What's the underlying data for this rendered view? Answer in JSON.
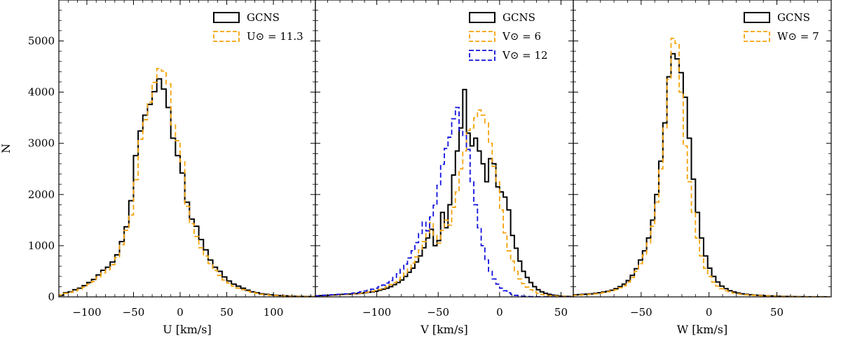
{
  "figure": {
    "ylabel": "N",
    "colors": {
      "gcns": "#000000",
      "orange": "#f5a30a",
      "blue": "#1010dd"
    }
  },
  "chart_data": [
    {
      "type": "histogram",
      "xlabel": "U [km/s]",
      "xlim": [
        -130,
        145
      ],
      "ylim": [
        0,
        5800
      ],
      "xticks": [
        -100,
        -50,
        0,
        50,
        100
      ],
      "xtick_labels": [
        "−100",
        "−50",
        "0",
        "50",
        "100"
      ],
      "yticks": [
        0,
        1000,
        2000,
        3000,
        4000,
        5000
      ],
      "ytick_labels": [
        "0",
        "1000",
        "2000",
        "3000",
        "4000",
        "5000"
      ],
      "bin_start": -130,
      "bin_width": 5,
      "legend": {
        "placement": "top-right"
      },
      "series": [
        {
          "name": "GCNS",
          "style": "solid",
          "color": "#000000",
          "values": [
            30,
            80,
            100,
            140,
            170,
            220,
            280,
            340,
            430,
            520,
            580,
            680,
            820,
            1080,
            1370,
            1880,
            2760,
            3240,
            3550,
            3760,
            4010,
            4260,
            4060,
            3700,
            3100,
            2760,
            2420,
            1850,
            1520,
            1380,
            1120,
            920,
            720,
            580,
            500,
            390,
            310,
            250,
            210,
            170,
            130,
            100,
            80,
            60,
            50,
            40,
            30,
            25,
            20,
            15,
            12,
            10,
            8,
            6,
            5
          ]
        },
        {
          "name": "U⊙ = 11.3",
          "style": "dashed",
          "color": "#f5a30a",
          "values": [
            40,
            70,
            90,
            120,
            150,
            190,
            250,
            300,
            390,
            470,
            530,
            630,
            770,
            1020,
            1300,
            1600,
            2290,
            3080,
            3460,
            3800,
            4190,
            4460,
            4410,
            4160,
            3360,
            3050,
            2640,
            1770,
            1430,
            1180,
            960,
            800,
            650,
            520,
            420,
            330,
            270,
            210,
            170,
            140,
            110,
            90,
            70,
            50,
            40,
            30,
            25,
            20,
            15,
            12,
            10,
            8,
            6,
            5,
            4
          ]
        }
      ]
    },
    {
      "type": "histogram",
      "xlabel": "V [km/s]",
      "xlim": [
        -150,
        60
      ],
      "ylim": [
        0,
        5800
      ],
      "xticks": [
        -100,
        -50,
        0,
        50
      ],
      "xtick_labels": [
        "−100",
        "−50",
        "0",
        "50"
      ],
      "yticks": [
        0,
        1000,
        2000,
        3000,
        4000,
        5000
      ],
      "legend": {
        "placement": "top-right"
      },
      "bin_start": -150,
      "bin_width": 3,
      "series": [
        {
          "name": "GCNS",
          "style": "solid",
          "color": "#000000",
          "values": [
            20,
            25,
            30,
            30,
            35,
            40,
            45,
            50,
            50,
            55,
            60,
            65,
            70,
            80,
            90,
            100,
            110,
            130,
            150,
            170,
            200,
            240,
            280,
            330,
            400,
            480,
            560,
            680,
            800,
            960,
            1150,
            1320,
            1000,
            1100,
            1650,
            1350,
            1800,
            2380,
            2850,
            3300,
            4050,
            3200,
            2950,
            3100,
            2850,
            2600,
            2250,
            2700,
            2600,
            2150,
            2050,
            1950,
            1700,
            1200,
            950,
            700,
            500,
            380,
            280,
            200,
            140,
            100,
            70,
            50,
            35,
            25,
            15,
            10,
            8,
            6
          ]
        },
        {
          "name": "V⊙ = 6",
          "style": "dashed",
          "color": "#f5a30a",
          "values": [
            15,
            20,
            20,
            25,
            30,
            35,
            40,
            45,
            50,
            55,
            60,
            65,
            75,
            85,
            95,
            110,
            125,
            145,
            170,
            200,
            240,
            280,
            330,
            400,
            470,
            560,
            660,
            780,
            920,
            1080,
            1250,
            1450,
            1200,
            1050,
            1300,
            1500,
            1400,
            1750,
            2050,
            2500,
            2850,
            3250,
            3300,
            3500,
            3650,
            3550,
            3400,
            3000,
            2550,
            2250,
            1700,
            1250,
            900,
            700,
            500,
            350,
            260,
            190,
            140,
            100,
            70,
            50,
            35,
            25,
            20,
            15,
            10,
            8,
            5,
            4
          ]
        },
        {
          "name": "V⊙ = 12",
          "style": "dashed",
          "color": "#1010dd",
          "values": [
            20,
            25,
            30,
            35,
            40,
            45,
            50,
            55,
            60,
            65,
            75,
            85,
            100,
            115,
            130,
            150,
            170,
            200,
            230,
            270,
            320,
            380,
            450,
            540,
            640,
            760,
            900,
            1060,
            1240,
            1460,
            1290,
            1560,
            1790,
            2180,
            2590,
            2900,
            3120,
            3480,
            3700,
            3250,
            3150,
            2880,
            2250,
            1800,
            1350,
            1000,
            720,
            500,
            350,
            250,
            170,
            120,
            80,
            50,
            30,
            20,
            12,
            8,
            5,
            3,
            2,
            1,
            1,
            0,
            0,
            0,
            0,
            0,
            0,
            0
          ]
        }
      ]
    },
    {
      "type": "histogram",
      "xlabel": "W [km/s]",
      "xlim": [
        -100,
        90
      ],
      "ylim": [
        0,
        5800
      ],
      "xticks": [
        -50,
        0,
        50
      ],
      "xtick_labels": [
        "−50",
        "0",
        "50"
      ],
      "yticks": [
        0,
        1000,
        2000,
        3000,
        4000,
        5000
      ],
      "legend": {
        "placement": "top-right"
      },
      "bin_start": -100,
      "bin_width": 3,
      "series": [
        {
          "name": "GCNS",
          "style": "solid",
          "color": "#000000",
          "values": [
            40,
            45,
            50,
            55,
            60,
            70,
            80,
            95,
            110,
            130,
            160,
            200,
            250,
            320,
            420,
            550,
            720,
            900,
            1150,
            1500,
            2000,
            2650,
            3400,
            4300,
            4750,
            4650,
            4380,
            3900,
            3100,
            2300,
            1650,
            1150,
            800,
            560,
            400,
            290,
            210,
            160,
            120,
            95,
            75,
            60,
            50,
            42,
            35,
            30,
            25,
            20,
            18,
            15,
            12,
            10,
            8,
            6,
            5,
            4,
            3,
            2,
            2,
            1,
            1,
            1,
            0
          ]
        },
        {
          "name": "W⊙ = 7",
          "style": "dashed",
          "color": "#f5a30a",
          "values": [
            30,
            35,
            40,
            45,
            55,
            60,
            70,
            85,
            100,
            120,
            140,
            180,
            220,
            290,
            380,
            500,
            650,
            820,
            1050,
            1380,
            1850,
            2500,
            3300,
            4250,
            5050,
            4950,
            4000,
            2950,
            2250,
            1650,
            1150,
            800,
            560,
            400,
            290,
            210,
            160,
            120,
            95,
            75,
            60,
            50,
            42,
            35,
            30,
            25,
            20,
            18,
            15,
            12,
            10,
            8,
            6,
            5,
            4,
            3,
            2,
            2,
            1,
            1,
            0,
            0,
            0
          ]
        }
      ]
    }
  ]
}
